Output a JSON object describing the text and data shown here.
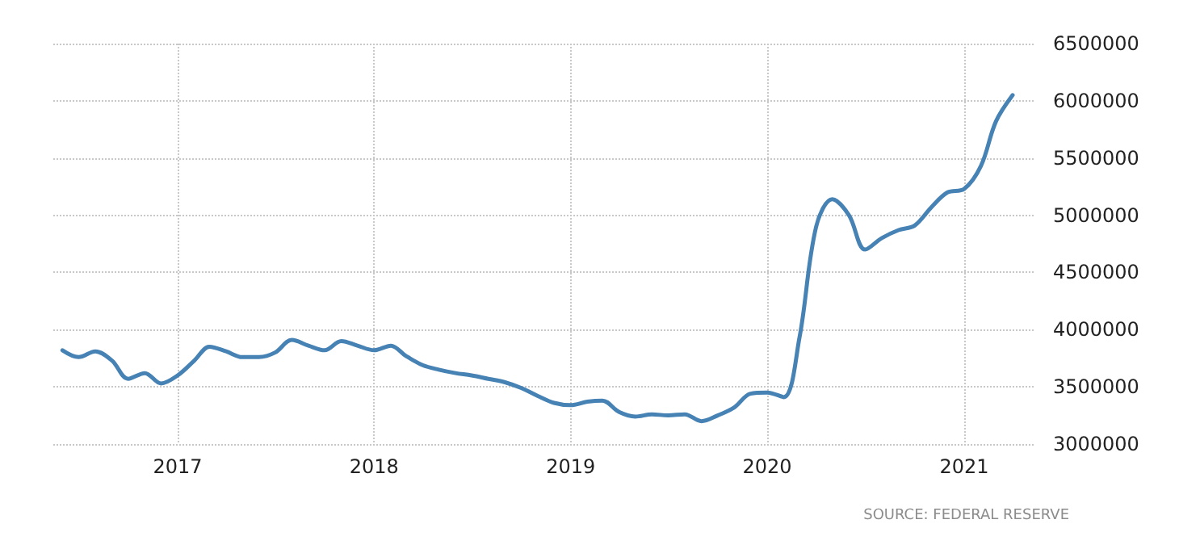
{
  "chart_data": {
    "type": "line",
    "x": [
      "2016-06",
      "2016-07",
      "2016-08",
      "2016-09",
      "2016-10",
      "2016-11",
      "2016-12",
      "2017-01",
      "2017-02",
      "2017-03",
      "2017-04",
      "2017-05",
      "2017-06",
      "2017-07",
      "2017-08",
      "2017-09",
      "2017-10",
      "2017-11",
      "2017-12",
      "2018-01",
      "2018-02",
      "2018-03",
      "2018-04",
      "2018-05",
      "2018-06",
      "2018-07",
      "2018-08",
      "2018-09",
      "2018-10",
      "2018-11",
      "2018-12",
      "2019-01",
      "2019-02",
      "2019-03",
      "2019-04",
      "2019-05",
      "2019-06",
      "2019-07",
      "2019-08",
      "2019-09",
      "2019-10",
      "2019-11",
      "2019-12",
      "2020-01",
      "2020-02",
      "2020-03",
      "2020-04",
      "2020-05",
      "2020-06",
      "2020-07",
      "2020-08",
      "2020-09",
      "2020-10",
      "2020-11",
      "2020-12",
      "2021-01",
      "2021-02",
      "2021-03",
      "2021-04"
    ],
    "series": [
      {
        "color": "#4682b4",
        "values": [
          3820000,
          3760000,
          3810000,
          3730000,
          3570000,
          3620000,
          3530000,
          3600000,
          3730000,
          3850000,
          3810000,
          3760000,
          3760000,
          3800000,
          3910000,
          3860000,
          3820000,
          3900000,
          3860000,
          3820000,
          3860000,
          3770000,
          3690000,
          3650000,
          3620000,
          3600000,
          3570000,
          3540000,
          3490000,
          3420000,
          3360000,
          3340000,
          3370000,
          3380000,
          3280000,
          3240000,
          3260000,
          3250000,
          3260000,
          3200000,
          3250000,
          3320000,
          3440000,
          3450000,
          3410000,
          3930000,
          4900000,
          5140000,
          5000000,
          4700000,
          4800000,
          4870000,
          4910000,
          5070000,
          5200000,
          5230000,
          5430000,
          5820000,
          6050000
        ]
      }
    ],
    "xlim": [
      "2016-05-15",
      "2021-05-10"
    ],
    "xticks": [
      "2017",
      "2018",
      "2019",
      "2020",
      "2021"
    ],
    "ylim": [
      3000000,
      6500000
    ],
    "yticks": [
      3000000,
      3500000,
      4000000,
      4500000,
      5000000,
      5500000,
      6000000,
      6500000
    ],
    "grid": true,
    "marker": "none",
    "line_style": "solid",
    "annotations": [
      "SOURCE: FEDERAL RESERVE"
    ]
  }
}
